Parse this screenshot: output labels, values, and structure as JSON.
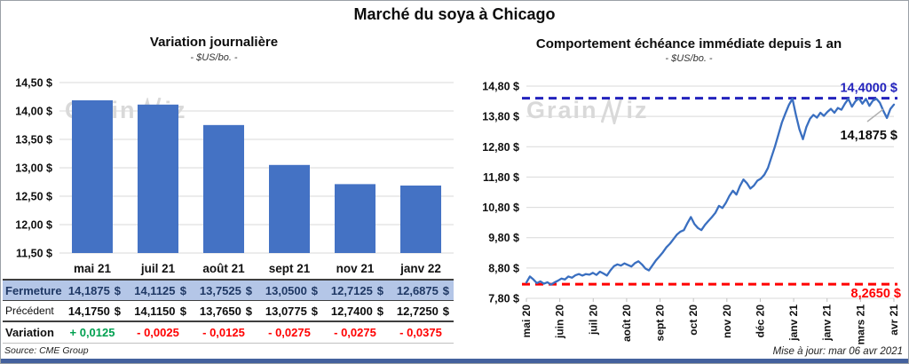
{
  "title": "Marché du soya à Chicago",
  "watermark_text": "Grain",
  "watermark_text2": "iz",
  "colors": {
    "bar_blue": "#4472C4",
    "line_blue": "#3A6FC0",
    "resistance_blue": "#2323BD",
    "support_red": "#FF0000",
    "positive_green": "#00A050",
    "negative_red": "#FF0000",
    "close_row_bg": "#B4C6E7",
    "close_row_text": "#1F3864",
    "footer_bar": "#44619D",
    "grid": "#D9D9D9",
    "watermark": "#D0D0D0"
  },
  "chart_data": [
    {
      "type": "bar",
      "title": "Variation journalière",
      "subtitle": "- $US/bo. -",
      "categories": [
        "mai 21",
        "juil 21",
        "août 21",
        "sept 21",
        "nov 21",
        "janv 22"
      ],
      "values": [
        14.1875,
        14.1125,
        13.7525,
        13.05,
        12.7125,
        12.6875
      ],
      "ylim": [
        11.5,
        14.5
      ],
      "ytick_values": [
        14.5,
        14.0,
        13.5,
        13.0,
        12.5,
        12.0,
        11.5
      ],
      "ytick_labels": [
        "14,50 $",
        "14,00 $",
        "13,50 $",
        "13,00 $",
        "12,50 $",
        "12,00 $",
        "11,50 $"
      ],
      "grid": true,
      "source": "Source: CME Group",
      "table_rows": [
        {
          "kind": "close",
          "label": "Fermeture",
          "values": [
            "14,1875 $",
            "14,1125 $",
            "13,7525 $",
            "13,0500 $",
            "12,7125 $",
            "12,6875 $"
          ]
        },
        {
          "kind": "previous",
          "label": "Précédent",
          "values": [
            "14,1750 $",
            "14,1150 $",
            "13,7650 $",
            "13,0775 $",
            "12,7400 $",
            "12,7250 $"
          ]
        },
        {
          "kind": "change",
          "label": "Variation",
          "values": [
            "+ 0,0125",
            "- 0,0025",
            "- 0,0125",
            "- 0,0275",
            "- 0,0275",
            "- 0,0375"
          ]
        }
      ]
    },
    {
      "type": "line",
      "title": "Comportement échéance immédiate depuis 1 an",
      "subtitle": "- $US/bo. -",
      "x_labels": [
        "mai 20",
        "juin 20",
        "juil 20",
        "août 20",
        "sept 20",
        "oct 20",
        "nov 20",
        "déc 20",
        "janv 21",
        "janv 21",
        "mars 21",
        "avr 21"
      ],
      "values": [
        8.32,
        8.52,
        8.42,
        8.3,
        8.36,
        8.28,
        8.33,
        8.25,
        8.32,
        8.38,
        8.45,
        8.42,
        8.52,
        8.48,
        8.56,
        8.6,
        8.55,
        8.6,
        8.58,
        8.64,
        8.57,
        8.68,
        8.62,
        8.55,
        8.72,
        8.86,
        8.92,
        8.88,
        8.95,
        8.9,
        8.85,
        8.96,
        9.02,
        8.92,
        8.78,
        8.72,
        8.88,
        9.05,
        9.18,
        9.32,
        9.48,
        9.6,
        9.75,
        9.9,
        10.0,
        10.05,
        10.28,
        10.48,
        10.25,
        10.12,
        10.05,
        10.22,
        10.35,
        10.48,
        10.62,
        10.85,
        10.78,
        10.95,
        11.18,
        11.35,
        11.22,
        11.5,
        11.72,
        11.6,
        11.42,
        11.52,
        11.68,
        11.75,
        11.88,
        12.1,
        12.45,
        12.8,
        13.2,
        13.6,
        13.9,
        14.18,
        14.38,
        13.85,
        13.38,
        13.05,
        13.45,
        13.72,
        13.85,
        13.76,
        13.92,
        13.82,
        13.95,
        14.05,
        13.92,
        14.08,
        14.02,
        14.22,
        14.38,
        14.12,
        14.3,
        14.4,
        14.22,
        14.38,
        14.15,
        14.32,
        14.38,
        14.25,
        13.98,
        13.75,
        14.05,
        14.19
      ],
      "ylim": [
        7.8,
        14.8
      ],
      "ytick_values": [
        14.8,
        13.8,
        12.8,
        11.8,
        10.8,
        9.8,
        8.8,
        7.8
      ],
      "ytick_labels": [
        "14,80 $",
        "13,80 $",
        "12,80 $",
        "11,80 $",
        "10,80 $",
        "9,80 $",
        "8,80 $",
        "7,80 $"
      ],
      "grid": true,
      "resistance": {
        "value": 14.4,
        "label": "14,4000 $"
      },
      "support": {
        "value": 8.265,
        "label": "8,2650 $"
      },
      "last_point_label": "14,1875 $",
      "updated": "Mise à jour: mar 06 avr 2021"
    }
  ]
}
